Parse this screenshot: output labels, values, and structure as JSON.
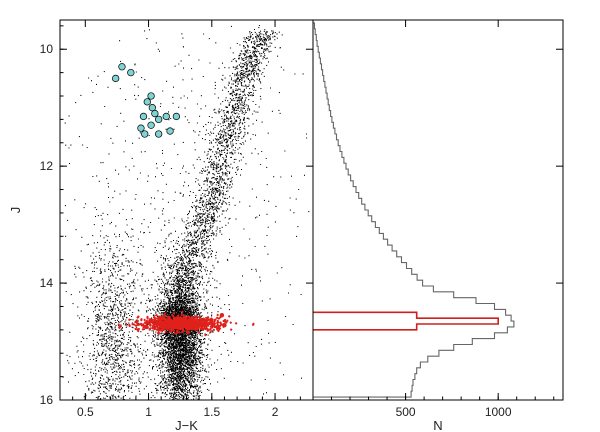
{
  "chart_data": [
    {
      "type": "scatter",
      "xlabel": "J−K",
      "ylabel": "J",
      "xlim": [
        0.3,
        2.3
      ],
      "ylim": [
        16,
        9.5
      ],
      "x_ticks": [
        0.5,
        1,
        1.5,
        2
      ],
      "x_tick_labels": [
        "0.5",
        "1",
        "1.5",
        "2"
      ],
      "y_ticks": [
        10,
        12,
        14,
        16
      ],
      "y_tick_labels": [
        "10",
        "12",
        "14",
        "16"
      ],
      "y_inverted": true,
      "grid": false,
      "series": [
        {
          "marker": "dot",
          "color": "#000000",
          "density_components": [
            {
              "x_mean": 1.25,
              "x_sd": 0.09,
              "y_mean": 15.0,
              "y_sd": 0.6,
              "weight": 0.42
            },
            {
              "x_mean": 1.22,
              "x_sd": 0.08,
              "y_mean": 14.65,
              "y_sd": 0.12,
              "weight": 0.1
            },
            {
              "x_mean": 0.72,
              "x_sd": 0.12,
              "y_mean": 15.0,
              "y_sd": 0.9,
              "weight": 0.14
            },
            {
              "x_mean": 1.25,
              "x_sd": 0.5,
              "y_mean": 13.0,
              "y_sd": 2.0,
              "weight": 0.08
            }
          ],
          "ridge": [
            [
              1.22,
              14.6
            ],
            [
              1.35,
              13.5
            ],
            [
              1.5,
              12.5
            ],
            [
              1.62,
              11.5
            ],
            [
              1.75,
              10.5
            ],
            [
              1.9,
              9.7
            ]
          ],
          "ridge_weight": 0.26
        },
        {
          "marker": "circle",
          "color": "#7fd3d3",
          "points": [
            {
              "x": 0.74,
              "y": 10.5
            },
            {
              "x": 0.79,
              "y": 10.3
            },
            {
              "x": 0.86,
              "y": 10.4
            },
            {
              "x": 1.02,
              "y": 10.8
            },
            {
              "x": 0.99,
              "y": 10.9
            },
            {
              "x": 1.03,
              "y": 11.0
            },
            {
              "x": 0.96,
              "y": 11.15
            },
            {
              "x": 1.05,
              "y": 11.1
            },
            {
              "x": 1.08,
              "y": 11.2
            },
            {
              "x": 1.14,
              "y": 11.15
            },
            {
              "x": 1.22,
              "y": 11.15
            },
            {
              "x": 1.02,
              "y": 11.3
            },
            {
              "x": 0.94,
              "y": 11.35
            },
            {
              "x": 1.17,
              "y": 11.4
            },
            {
              "x": 0.97,
              "y": 11.45
            },
            {
              "x": 1.08,
              "y": 11.45
            }
          ]
        },
        {
          "marker": "star",
          "color": "#e0201b",
          "density_components": [
            {
              "x_mean": 1.25,
              "x_sd": 0.16,
              "y_mean": 14.68,
              "y_sd": 0.06,
              "weight": 1.0
            }
          ],
          "outliers": [
            {
              "x": 1.58,
              "y": 14.55
            },
            {
              "x": 1.6,
              "y": 14.72
            },
            {
              "x": 1.55,
              "y": 14.78
            },
            {
              "x": 0.98,
              "y": 14.75
            }
          ]
        }
      ]
    },
    {
      "type": "histogram",
      "orientation": "horizontal",
      "xlabel": "N",
      "ylabel": "",
      "xlim": [
        0,
        1350
      ],
      "ylim": [
        16,
        9.5
      ],
      "x_ticks": [
        500,
        1000
      ],
      "x_tick_labels": [
        "500",
        "1000"
      ],
      "grid": false,
      "bin_width": 0.1,
      "series": [
        {
          "style": "step",
          "color": "#666666",
          "bins": [
            {
              "y": 9.6,
              "n": 8
            },
            {
              "y": 9.7,
              "n": 12
            },
            {
              "y": 9.8,
              "n": 18
            },
            {
              "y": 9.9,
              "n": 22
            },
            {
              "y": 10.0,
              "n": 28
            },
            {
              "y": 10.1,
              "n": 34
            },
            {
              "y": 10.2,
              "n": 40
            },
            {
              "y": 10.3,
              "n": 46
            },
            {
              "y": 10.4,
              "n": 52
            },
            {
              "y": 10.5,
              "n": 58
            },
            {
              "y": 10.6,
              "n": 64
            },
            {
              "y": 10.7,
              "n": 70
            },
            {
              "y": 10.8,
              "n": 76
            },
            {
              "y": 10.9,
              "n": 82
            },
            {
              "y": 11.0,
              "n": 88
            },
            {
              "y": 11.1,
              "n": 95
            },
            {
              "y": 11.2,
              "n": 102
            },
            {
              "y": 11.3,
              "n": 110
            },
            {
              "y": 11.4,
              "n": 118
            },
            {
              "y": 11.5,
              "n": 127
            },
            {
              "y": 11.6,
              "n": 136
            },
            {
              "y": 11.7,
              "n": 146
            },
            {
              "y": 11.8,
              "n": 156
            },
            {
              "y": 11.9,
              "n": 167
            },
            {
              "y": 12.0,
              "n": 178
            },
            {
              "y": 12.1,
              "n": 190
            },
            {
              "y": 12.2,
              "n": 203
            },
            {
              "y": 12.3,
              "n": 217
            },
            {
              "y": 12.4,
              "n": 232
            },
            {
              "y": 12.5,
              "n": 247
            },
            {
              "y": 12.6,
              "n": 263
            },
            {
              "y": 12.7,
              "n": 280
            },
            {
              "y": 12.8,
              "n": 298
            },
            {
              "y": 12.9,
              "n": 317
            },
            {
              "y": 13.0,
              "n": 337
            },
            {
              "y": 13.1,
              "n": 358
            },
            {
              "y": 13.2,
              "n": 380
            },
            {
              "y": 13.3,
              "n": 403
            },
            {
              "y": 13.4,
              "n": 427
            },
            {
              "y": 13.5,
              "n": 452
            },
            {
              "y": 13.6,
              "n": 478
            },
            {
              "y": 13.7,
              "n": 505
            },
            {
              "y": 13.8,
              "n": 533
            },
            {
              "y": 13.9,
              "n": 562
            },
            {
              "y": 14.0,
              "n": 592
            },
            {
              "y": 14.1,
              "n": 650
            },
            {
              "y": 14.2,
              "n": 760
            },
            {
              "y": 14.3,
              "n": 880
            },
            {
              "y": 14.4,
              "n": 980
            },
            {
              "y": 14.5,
              "n": 1040
            },
            {
              "y": 14.6,
              "n": 1070
            },
            {
              "y": 14.7,
              "n": 1085
            },
            {
              "y": 14.8,
              "n": 1050
            },
            {
              "y": 14.9,
              "n": 980
            },
            {
              "y": 15.0,
              "n": 860
            },
            {
              "y": 15.1,
              "n": 760
            },
            {
              "y": 15.2,
              "n": 680
            },
            {
              "y": 15.3,
              "n": 620
            },
            {
              "y": 15.4,
              "n": 580
            },
            {
              "y": 15.5,
              "n": 560
            },
            {
              "y": 15.6,
              "n": 550
            },
            {
              "y": 15.7,
              "n": 540
            },
            {
              "y": 15.8,
              "n": 535
            },
            {
              "y": 15.9,
              "n": 530
            }
          ]
        },
        {
          "style": "step",
          "color": "#d0201b",
          "bins": [
            {
              "y": 14.55,
              "n": 560,
              "height": 0.1
            },
            {
              "y": 14.65,
              "n": 1000,
              "height": 0.1
            },
            {
              "y": 14.75,
              "n": 560,
              "height": 0.1
            }
          ]
        }
      ]
    }
  ]
}
